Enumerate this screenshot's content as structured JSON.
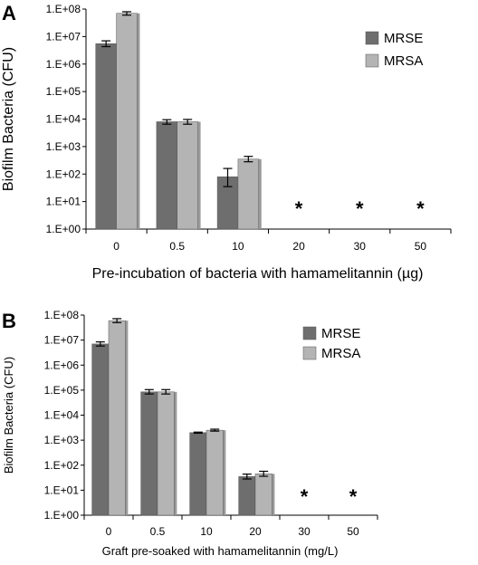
{
  "chart_data": [
    {
      "panel": "A",
      "type": "bar",
      "log_scale": true,
      "ylim": [
        1,
        100000000
      ],
      "yticks": [
        "1.E+00",
        "1.E+01",
        "1.E+02",
        "1.E+03",
        "1.E+04",
        "1.E+05",
        "1.E+06",
        "1.E+07",
        "1.E+08"
      ],
      "ylabel": "Biofilm Bacteria (CFU)",
      "xlabel": "Pre-incubation of bacteria with hamamelitannin (µg)",
      "categories": [
        "0",
        "0.5",
        "10",
        "20",
        "30",
        "50"
      ],
      "series": [
        {
          "name": "MRSE",
          "color": "#6e6e6e",
          "values": [
            5500000,
            8000,
            80,
            null,
            null,
            null
          ],
          "err_low": [
            4300000,
            6500,
            35,
            null,
            null,
            null
          ],
          "err_high": [
            7000000,
            9500,
            160,
            null,
            null,
            null
          ]
        },
        {
          "name": "MRSA",
          "color": "#b4b4b4",
          "values": [
            70000000,
            8000,
            350,
            null,
            null,
            null
          ],
          "err_low": [
            60000000,
            6500,
            280,
            null,
            null,
            null
          ],
          "err_high": [
            80000000,
            9700,
            440,
            null,
            null,
            null
          ]
        }
      ],
      "annotations": [
        "*",
        "*",
        "*"
      ],
      "annotation_categories": [
        "20",
        "30",
        "50"
      ],
      "legend_position": "top-right",
      "grid": false
    },
    {
      "panel": "B",
      "type": "bar",
      "log_scale": true,
      "ylim": [
        1,
        100000000
      ],
      "yticks": [
        "1.E+00",
        "1.E+01",
        "1.E+02",
        "1.E+03",
        "1.E+04",
        "1.E+05",
        "1.E+06",
        "1.E+07",
        "1.E+08"
      ],
      "ylabel": "Biofilm Bacteria (CFU)",
      "xlabel": "Graft pre-soaked with hamamelitannin (mg/L)",
      "categories": [
        "0",
        "0.5",
        "10",
        "20",
        "30",
        "50"
      ],
      "series": [
        {
          "name": "MRSE",
          "color": "#6e6e6e",
          "values": [
            7000000,
            85000,
            2000,
            35,
            null,
            null
          ],
          "err_low": [
            5800000,
            70000,
            1900,
            28,
            null,
            null
          ],
          "err_high": [
            8500000,
            105000,
            2100,
            44,
            null,
            null
          ]
        },
        {
          "name": "MRSA",
          "color": "#b4b4b4",
          "values": [
            60000000,
            85000,
            2500,
            45,
            null,
            null
          ],
          "err_low": [
            50000000,
            70000,
            2300,
            36,
            null,
            null
          ],
          "err_high": [
            72000000,
            105000,
            2750,
            57,
            null,
            null
          ]
        }
      ],
      "annotations": [
        "*",
        "*"
      ],
      "annotation_categories": [
        "30",
        "50"
      ],
      "legend_position": "top-right",
      "grid": false
    }
  ]
}
